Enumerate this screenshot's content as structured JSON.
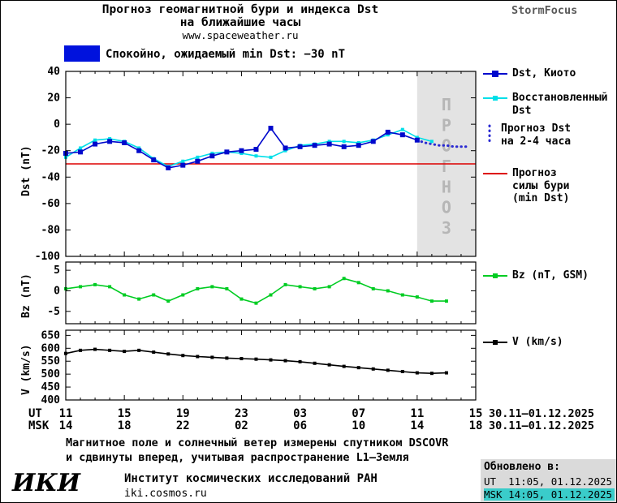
{
  "header": {
    "title_line1": "Прогноз геомагнитной бури и индекса Dst",
    "title_line2": "на ближайшие часы",
    "website": "www.spaceweather.ru",
    "brand": "StormFocus"
  },
  "status_banner": {
    "swatch_color": "#0012dd",
    "text": "Спокойно, ожидаемый min Dst: −30 nT"
  },
  "chart_data": [
    {
      "type": "line",
      "panel": "dst",
      "title": "",
      "ylabel": "Dst (nT)",
      "ylim": [
        -100,
        40
      ],
      "yticks": [
        40,
        20,
        0,
        -20,
        -40,
        -60,
        -80,
        -100
      ],
      "x_unit": "hours from 11:00 UT 30.11",
      "xlim": [
        0,
        28
      ],
      "legend_position": "right",
      "forecast_band": {
        "from": 24,
        "to": 28,
        "label": "ПРОГНОЗ",
        "fill": "#e3e3e3",
        "label_color": "#b6b6b6"
      },
      "series": [
        {
          "name": "Dst, Киото",
          "color": "#0009cc",
          "marker_size": 6,
          "x": [
            0,
            1,
            2,
            3,
            4,
            5,
            6,
            7,
            8,
            9,
            10,
            11,
            12,
            13,
            14,
            15,
            16,
            17,
            18,
            19,
            20,
            21,
            22,
            23,
            24
          ],
          "values": [
            -22,
            -21,
            -15,
            -13,
            -14,
            -20,
            -27,
            -33,
            -31,
            -28,
            -24,
            -21,
            -20,
            -19,
            -3,
            -18,
            -17,
            -16,
            -15,
            -17,
            -16,
            -13,
            -6,
            -8,
            -12
          ]
        },
        {
          "name": "Восстановленный Dst",
          "color": "#00dfe8",
          "marker_size": 4,
          "x": [
            0,
            1,
            2,
            3,
            4,
            5,
            6,
            7,
            8,
            9,
            10,
            11,
            12,
            13,
            14,
            15,
            16,
            17,
            18,
            19,
            20,
            21,
            22,
            23,
            24,
            25
          ],
          "values": [
            -25,
            -18,
            -12,
            -11,
            -13,
            -18,
            -26,
            -32,
            -28,
            -25,
            -22,
            -21,
            -22,
            -24,
            -25,
            -20,
            -16,
            -15,
            -13,
            -13,
            -14,
            -12,
            -8,
            -4,
            -10,
            -13
          ]
        },
        {
          "name": "Прогноз Dst на 2-4 часа",
          "color": "#2a2ad2",
          "style": "dotted",
          "x": [
            24,
            24.5,
            25,
            25.5,
            26,
            26.5,
            27,
            27.5
          ],
          "values": [
            -12,
            -14,
            -15,
            -16,
            -16,
            -17,
            -17,
            -17
          ]
        },
        {
          "name": "Прогноз силы бури (min Dst)",
          "color": "#dd0000",
          "style": "hline",
          "value": -30
        }
      ]
    },
    {
      "type": "line",
      "panel": "bz",
      "title": "",
      "ylabel": "Bz (nT)",
      "ylim": [
        -8,
        7
      ],
      "yticks": [
        5,
        0,
        -5
      ],
      "xlim": [
        0,
        28
      ],
      "series": [
        {
          "name": "Bz (nT, GSM)",
          "color": "#00cc22",
          "marker_size": 4,
          "x": [
            0,
            1,
            2,
            3,
            4,
            5,
            6,
            7,
            8,
            9,
            10,
            11,
            12,
            13,
            14,
            15,
            16,
            17,
            18,
            19,
            20,
            21,
            22,
            23,
            24,
            25,
            26
          ],
          "values": [
            0.5,
            1,
            1.5,
            1,
            -1,
            -2,
            -1,
            -2.5,
            -1,
            0.5,
            1,
            0.5,
            -2,
            -3,
            -1,
            1.5,
            1,
            0.5,
            1,
            3,
            2,
            0.5,
            0,
            -1,
            -1.5,
            -2.5,
            -2.5
          ]
        }
      ]
    },
    {
      "type": "line",
      "panel": "v",
      "title": "",
      "ylabel": "V (km/s)",
      "ylim": [
        400,
        670
      ],
      "yticks": [
        650,
        600,
        550,
        500,
        450,
        400
      ],
      "xlim": [
        0,
        28
      ],
      "series": [
        {
          "name": "V (km/s)",
          "color": "#000000",
          "marker_size": 4,
          "x": [
            0,
            1,
            2,
            3,
            4,
            5,
            6,
            7,
            8,
            9,
            10,
            11,
            12,
            13,
            14,
            15,
            16,
            17,
            18,
            19,
            20,
            21,
            22,
            23,
            24,
            25,
            26
          ],
          "values": [
            580,
            592,
            596,
            592,
            588,
            592,
            585,
            578,
            572,
            568,
            565,
            562,
            560,
            558,
            555,
            552,
            548,
            542,
            536,
            530,
            525,
            520,
            515,
            510,
            505,
            503,
            505
          ]
        }
      ]
    }
  ],
  "xaxis": {
    "ut_label": "UT",
    "msk_label": "MSK",
    "ut_ticks": [
      "11",
      "15",
      "19",
      "23",
      "03",
      "07",
      "11",
      "15"
    ],
    "msk_ticks": [
      "14",
      "18",
      "22",
      "02",
      "06",
      "10",
      "14",
      "18"
    ],
    "date_range": "30.11—01.12.2025"
  },
  "legend": {
    "dst_kyoto": "Dst, Киото",
    "restored": "Восстановленный\nDst",
    "forecast": "Прогноз Dst\nна 2-4 часа",
    "storm": "Прогноз\nсилы бури\n(min Dst)",
    "bz": "Bz (nT, GSM)",
    "v": "V (km/s)"
  },
  "footer": {
    "note_line1": "Магнитное поле и солнечный ветер измерены спутником DSCOVR",
    "note_line2": "и сдвинуты вперед, учитывая распространение L1—Земля",
    "logo": "ИКИ",
    "institute": "Институт космических исследований РАН",
    "url": "iki.cosmos.ru"
  },
  "updated": {
    "title": "Обновлено в:",
    "ut": "UT  11:05, 01.12.2025",
    "msk": "MSK 14:05, 01.12.2025",
    "highlight_color": "#3accca",
    "panel_color": "#dadada"
  }
}
